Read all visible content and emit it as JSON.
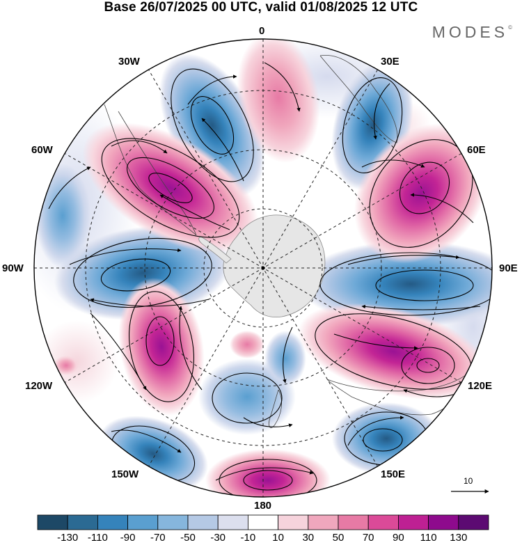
{
  "title": "Base 26/07/2025 00 UTC, valid 01/08/2025 12 UTC",
  "brand": "MODES",
  "brand_mark": "©",
  "longitude_labels": {
    "lon_0": "0",
    "lon_30e": "30E",
    "lon_60e": "60E",
    "lon_90e": "90E",
    "lon_120e": "120E",
    "lon_150e": "150E",
    "lon_180": "180",
    "lon_150w": "150W",
    "lon_120w": "120W",
    "lon_90w": "90W",
    "lon_60w": "60W",
    "lon_30w": "30W"
  },
  "reference_vector_label": "10",
  "colorbar": {
    "tick_labels": [
      "-130",
      "-110",
      "-90",
      "-70",
      "-50",
      "-30",
      "-10",
      "10",
      "30",
      "50",
      "70",
      "90",
      "110",
      "130"
    ],
    "colors": [
      "#1d4866",
      "#2b6a93",
      "#3583bb",
      "#5a9fd0",
      "#86b6dd",
      "#b5c9e5",
      "#dcdfee",
      "#ffffff",
      "#f6d3dc",
      "#f0a7bd",
      "#e77aa5",
      "#db4a98",
      "#be2093",
      "#8e0a8d",
      "#5c0a72"
    ]
  },
  "colors": {
    "continent": "#e6e6e6",
    "outline": "#111111"
  }
}
